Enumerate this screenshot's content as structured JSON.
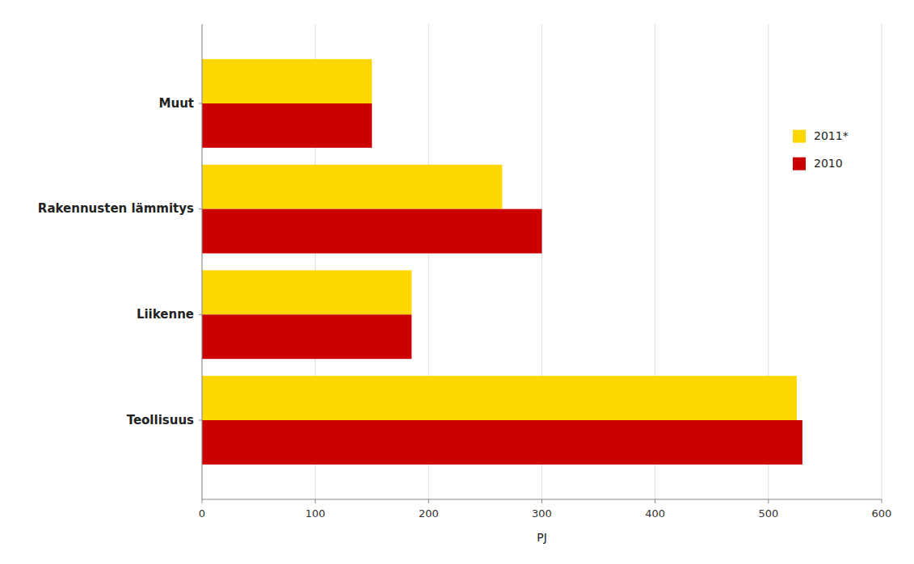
{
  "chart_data": {
    "type": "bar",
    "orientation": "horizontal",
    "categories": [
      "Teollisuus",
      "Liikenne",
      "Rakennusten lämmitys",
      "Muut"
    ],
    "series": [
      {
        "name": "2011*",
        "color": "#FFD700",
        "values": [
          525,
          185,
          265,
          150
        ]
      },
      {
        "name": "2010",
        "color": "#CC0000",
        "values": [
          530,
          185,
          300,
          150
        ]
      }
    ],
    "xlabel": "PJ",
    "xlim": [
      0,
      600
    ],
    "xticks": [
      0,
      100,
      200,
      300,
      400,
      500,
      600
    ],
    "grid": true,
    "legend": "right"
  }
}
